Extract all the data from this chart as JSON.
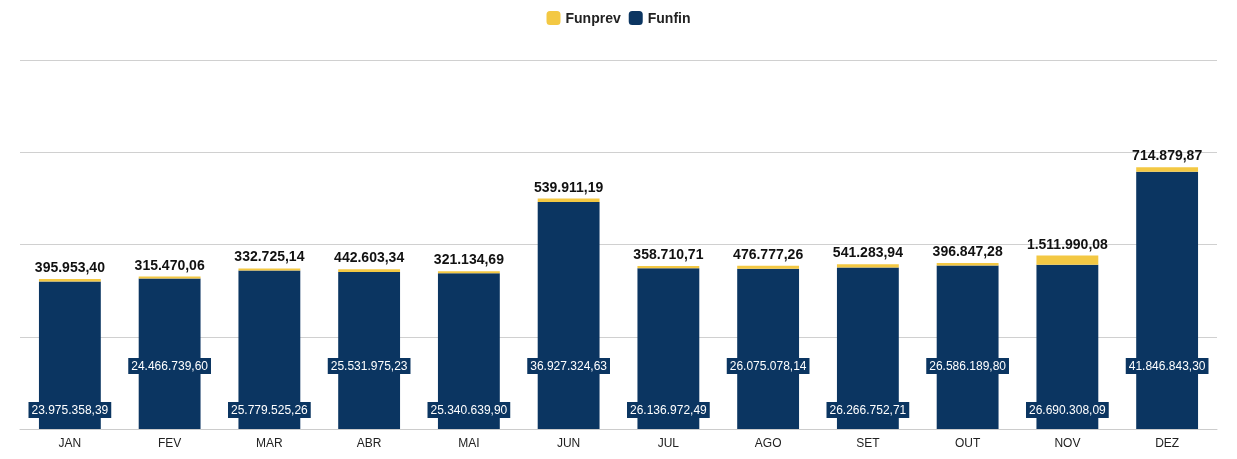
{
  "chart_data": {
    "type": "bar",
    "stacked": true,
    "categories": [
      "JAN",
      "FEV",
      "MAR",
      "ABR",
      "MAI",
      "JUN",
      "JUL",
      "AGO",
      "SET",
      "OUT",
      "NOV",
      "DEZ"
    ],
    "series": [
      {
        "name": "Funfin",
        "color": "#0b3561",
        "values": [
          23975358.39,
          24466739.6,
          25779525.26,
          25531975.23,
          25340639.9,
          36927324.63,
          26136972.49,
          26075078.14,
          26266752.71,
          26586189.8,
          26690308.09,
          41846843.3
        ],
        "value_labels": [
          "23.975.358,39",
          "24.466.739,60",
          "25.779.525,26",
          "25.531.975,23",
          "25.340.639,90",
          "36.927.324,63",
          "26.136.972,49",
          "26.075.078,14",
          "26.266.752,71",
          "26.586.189,80",
          "26.690.308,09",
          "41.846.843,30"
        ]
      },
      {
        "name": "Funprev",
        "color": "#f3c843",
        "values": [
          395953.4,
          315470.06,
          332725.14,
          442603.34,
          321134.69,
          539911.19,
          358710.71,
          476777.26,
          541283.94,
          396847.28,
          1511990.08,
          714879.87
        ],
        "value_labels": [
          "395.953,40",
          "315.470,06",
          "332.725,14",
          "442.603,34",
          "321.134,69",
          "539.911,19",
          "358.710,71",
          "476.777,26",
          "541.283,94",
          "396.847,28",
          "1.511.990,08",
          "714.879,87"
        ]
      }
    ],
    "ylim": [
      0,
      60000000
    ],
    "yticks": [
      {
        "value": 0,
        "label": null
      },
      {
        "value": 15000000,
        "label": null
      },
      {
        "value": 30000000,
        "label": null
      },
      {
        "value": 45000000,
        "label": null
      },
      {
        "value": 60000000,
        "label": null
      }
    ],
    "tick_labels": "x",
    "grid": "y",
    "legend": "top"
  }
}
